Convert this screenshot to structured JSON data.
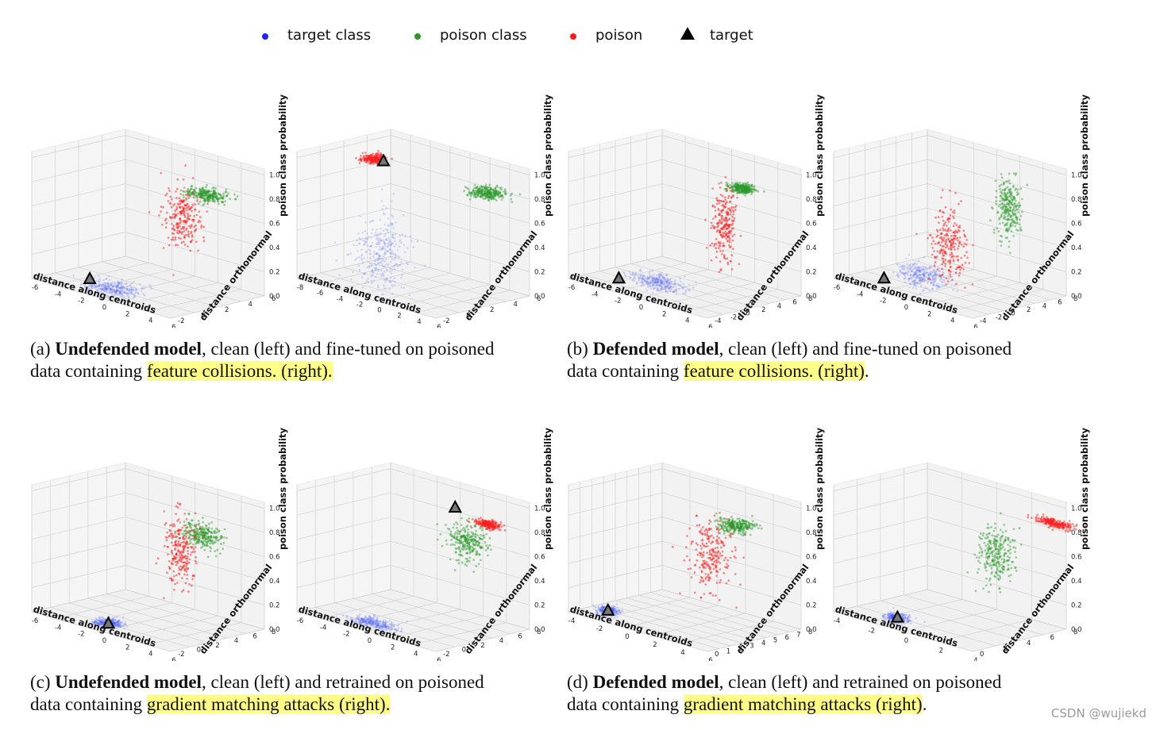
{
  "legend": [
    {
      "label": "target class",
      "color": "#1f1fff",
      "marker": "dot"
    },
    {
      "label": "poison class",
      "color": "#2a9a2a",
      "marker": "dot"
    },
    {
      "label": "poison",
      "color": "#ff1a1a",
      "marker": "dot"
    },
    {
      "label": "target",
      "color": "#000000",
      "marker": "triangle"
    }
  ],
  "captions": [
    {
      "label": "(a)",
      "bold": "Undefended model",
      "rest": ", clean (left) and fine-tuned on poisoned",
      "line2_pre": "data containing ",
      "highlight": "feature collisions. (right).",
      "tail": ""
    },
    {
      "label": "(b)",
      "bold": "Defended model",
      "rest": ", clean (left) and fine-tuned on poisoned",
      "line2_pre": "data containing ",
      "highlight": "feature collisions. (right)",
      "tail": "."
    },
    {
      "label": "(c)",
      "bold": "Undefended model",
      "rest": ", clean (left) and retrained on poisoned",
      "line2_pre": "data containing ",
      "highlight": "gradient matching attacks (right).",
      "tail": ""
    },
    {
      "label": "(d)",
      "bold": "Defended model",
      "rest": ", clean (left) and retrained on poisoned",
      "line2_pre": "data containing ",
      "highlight": "gradient matching attacks (right)",
      "tail": "."
    }
  ],
  "watermark": "CSDN @wujiekd",
  "chart_data": [
    {
      "type": "scatter",
      "panel": "a-left",
      "xlabel": "distance along centroids",
      "ylabel": "distance orthonormal",
      "zlabel": "poison class probability",
      "xticks": [
        "-6",
        "-4",
        "-2",
        "0",
        "2",
        "4",
        "6"
      ],
      "yticks": [
        "-2",
        "0",
        "2",
        "4",
        "6"
      ],
      "zticks": [
        "0.0",
        "0.2",
        "0.4",
        "0.6",
        "0.8",
        "1.0"
      ],
      "target_class": {
        "center": [
          -1,
          0,
          0.0
        ],
        "spread": [
          2.0,
          1.5,
          0.04
        ]
      },
      "poison_class": {
        "center": [
          3,
          4,
          0.8
        ],
        "spread": [
          1.5,
          1.0,
          0.04
        ]
      },
      "poison": {
        "center": [
          2,
          3,
          0.6
        ],
        "spread": [
          1.2,
          1.0,
          0.25
        ]
      },
      "target": [
        -2,
        -1,
        0.08
      ]
    },
    {
      "type": "scatter",
      "panel": "a-right",
      "xlabel": "distance along centroids",
      "ylabel": "distance orthonormal",
      "zlabel": "poison class probability",
      "xticks": [
        "-8",
        "-6",
        "-4",
        "-2",
        "0",
        "2",
        "4",
        "6"
      ],
      "yticks": [
        "-2",
        "0",
        "2",
        "4",
        "6"
      ],
      "zticks": [
        "0.0",
        "0.2",
        "0.4",
        "0.6",
        "0.8",
        "1.0"
      ],
      "target_class": {
        "center": [
          -2,
          0,
          0.3
        ],
        "spread": [
          2.0,
          1.5,
          0.3
        ]
      },
      "poison_class": {
        "center": [
          4,
          4,
          0.85
        ],
        "spread": [
          1.5,
          1.0,
          0.04
        ]
      },
      "poison": {
        "center": [
          -5,
          2,
          0.97
        ],
        "spread": [
          0.8,
          0.8,
          0.03
        ]
      },
      "target": [
        -4,
        2,
        0.97
      ]
    },
    {
      "type": "scatter",
      "panel": "b-left",
      "xlabel": "distance along centroids",
      "ylabel": "distance orthonormal",
      "zlabel": "poison class probability",
      "xticks": [
        "-6",
        "-4",
        "-2",
        "0",
        "2",
        "4",
        "6"
      ],
      "yticks": [
        "-4",
        "-2",
        "0",
        "2",
        "4",
        "6",
        "8"
      ],
      "zticks": [
        "0.0",
        "0.2",
        "0.4",
        "0.6",
        "0.8",
        "1.0"
      ],
      "target_class": {
        "center": [
          -1,
          0,
          0.05
        ],
        "spread": [
          2.0,
          1.5,
          0.05
        ]
      },
      "poison_class": {
        "center": [
          3,
          5,
          0.85
        ],
        "spread": [
          1.0,
          1.0,
          0.03
        ]
      },
      "poison": {
        "center": [
          2,
          4,
          0.55
        ],
        "spread": [
          0.8,
          1.0,
          0.3
        ]
      },
      "target": [
        -3,
        -2,
        0.05
      ]
    },
    {
      "type": "scatter",
      "panel": "b-right",
      "xlabel": "distance along centroids",
      "ylabel": "distance orthonormal",
      "zlabel": "poison class probability",
      "xticks": [
        "-6",
        "-4",
        "-2",
        "0",
        "2",
        "4",
        "6"
      ],
      "yticks": [
        "-4",
        "-2",
        "0",
        "2",
        "4",
        "6",
        "8"
      ],
      "zticks": [
        "0.0",
        "0.2",
        "0.4",
        "0.6",
        "0.8",
        "1.0"
      ],
      "target_class": {
        "center": [
          -1,
          0,
          0.1
        ],
        "spread": [
          2.0,
          1.5,
          0.1
        ]
      },
      "poison_class": {
        "center": [
          3,
          5,
          0.7
        ],
        "spread": [
          1.0,
          1.0,
          0.25
        ]
      },
      "poison": {
        "center": [
          0,
          2,
          0.35
        ],
        "spread": [
          1.2,
          1.5,
          0.3
        ]
      },
      "target": [
        -3,
        -2,
        0.05
      ]
    },
    {
      "type": "scatter",
      "panel": "c-left",
      "xlabel": "distance along centroids",
      "ylabel": "distance orthonormal",
      "zlabel": "poison class probability",
      "xticks": [
        "-6",
        "-4",
        "-2",
        "0",
        "2",
        "4",
        "6"
      ],
      "yticks": [
        "-2",
        "0",
        "2",
        "4",
        "6",
        "8"
      ],
      "zticks": [
        "0.0",
        "0.2",
        "0.4",
        "0.6",
        "0.8",
        "1.0"
      ],
      "target_class": {
        "center": [
          -1,
          0,
          0.0
        ],
        "spread": [
          1.0,
          1.0,
          0.03
        ]
      },
      "poison_class": {
        "center": [
          3,
          5,
          0.75
        ],
        "spread": [
          1.5,
          1.0,
          0.1
        ]
      },
      "poison": {
        "center": [
          2,
          4,
          0.6
        ],
        "spread": [
          1.2,
          1.0,
          0.3
        ]
      },
      "target": [
        -1,
        0,
        0.0
      ]
    },
    {
      "type": "scatter",
      "panel": "c-right",
      "xlabel": "distance along centroids",
      "ylabel": "distance orthonormal",
      "zlabel": "poison class probability",
      "xticks": [
        "-6",
        "-4",
        "-2",
        "0",
        "2",
        "4",
        "6"
      ],
      "yticks": [
        "-2",
        "0",
        "2",
        "4",
        "6",
        "8"
      ],
      "zticks": [
        "0.0",
        "0.2",
        "0.4",
        "0.6",
        "0.8",
        "1.0"
      ],
      "target_class": {
        "center": [
          -1,
          0,
          0.0
        ],
        "spread": [
          2.0,
          1.0,
          0.03
        ]
      },
      "poison_class": {
        "center": [
          3,
          5,
          0.7
        ],
        "spread": [
          1.5,
          1.0,
          0.15
        ]
      },
      "poison": {
        "center": [
          4,
          6,
          0.85
        ],
        "spread": [
          1.0,
          0.6,
          0.03
        ]
      },
      "target": [
        2,
        5,
        0.95
      ]
    },
    {
      "type": "scatter",
      "panel": "d-left",
      "xlabel": "distance along centroids",
      "ylabel": "distance orthonormal",
      "zlabel": "poison class probability",
      "xticks": [
        "-4",
        "-2",
        "0",
        "2",
        "4",
        "6"
      ],
      "yticks": [
        "0",
        "1",
        "2",
        "3",
        "4",
        "5",
        "6",
        "7",
        "8"
      ],
      "zticks": [
        "0.0",
        "0.2",
        "0.4",
        "0.6",
        "0.8",
        "1.0"
      ],
      "target_class": {
        "center": [
          -2,
          1,
          0.05
        ],
        "spread": [
          0.6,
          0.6,
          0.03
        ]
      },
      "poison_class": {
        "center": [
          3,
          6,
          0.8
        ],
        "spread": [
          1.0,
          1.0,
          0.05
        ]
      },
      "poison": {
        "center": [
          2,
          5,
          0.55
        ],
        "spread": [
          1.2,
          1.2,
          0.3
        ]
      },
      "target": [
        -2,
        1,
        0.05
      ]
    },
    {
      "type": "scatter",
      "panel": "d-right",
      "xlabel": "distance along centroids",
      "ylabel": "distance orthonormal",
      "zlabel": "poison class probability",
      "xticks": [
        "-4",
        "-2",
        "0",
        "2",
        "4"
      ],
      "yticks": [
        "0",
        "2",
        "4",
        "6",
        "8"
      ],
      "zticks": [
        "0.0",
        "0.2",
        "0.4",
        "0.6",
        "0.8",
        "1.0"
      ],
      "target_class": {
        "center": [
          -1,
          1,
          0.05
        ],
        "spread": [
          0.6,
          0.6,
          0.03
        ]
      },
      "poison_class": {
        "center": [
          2,
          5,
          0.6
        ],
        "spread": [
          1.0,
          1.0,
          0.25
        ]
      },
      "poison": {
        "center": [
          4,
          7,
          0.9
        ],
        "spread": [
          1.0,
          0.5,
          0.03
        ]
      },
      "target": [
        -1,
        1,
        0.05
      ]
    }
  ]
}
